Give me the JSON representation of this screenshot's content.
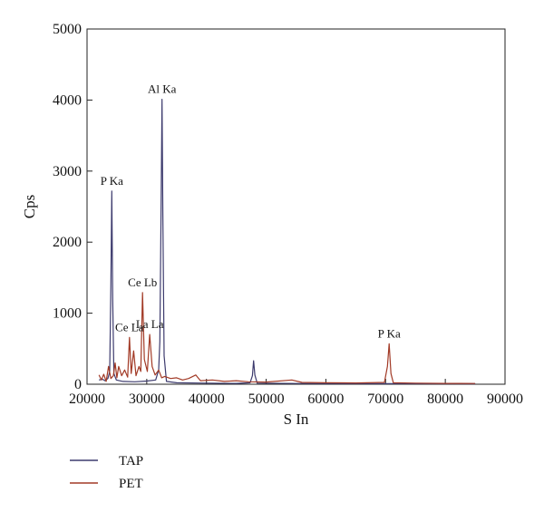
{
  "chart_data": {
    "type": "line",
    "title": "",
    "xlabel": "S In",
    "ylabel": "Cps",
    "xlim": [
      20000,
      90000
    ],
    "ylim": [
      0,
      5000
    ],
    "x_ticks": [
      20000,
      30000,
      40000,
      50000,
      60000,
      70000,
      80000,
      90000
    ],
    "y_ticks": [
      0,
      1000,
      2000,
      3000,
      4000,
      5000
    ],
    "grid": false,
    "legend_position": "bottom-left",
    "series": [
      {
        "name": "TAP",
        "color": "#3d3b6e",
        "points": [
          [
            22000,
            60
          ],
          [
            22600,
            70
          ],
          [
            23000,
            50
          ],
          [
            23500,
            80
          ],
          [
            23800,
            180
          ],
          [
            24000,
            1400
          ],
          [
            24150,
            2720
          ],
          [
            24300,
            1200
          ],
          [
            24500,
            150
          ],
          [
            24900,
            60
          ],
          [
            26000,
            40
          ],
          [
            28000,
            35
          ],
          [
            30000,
            45
          ],
          [
            31500,
            60
          ],
          [
            32000,
            200
          ],
          [
            32200,
            600
          ],
          [
            32400,
            2500
          ],
          [
            32550,
            4010
          ],
          [
            32700,
            2400
          ],
          [
            32900,
            400
          ],
          [
            33300,
            40
          ],
          [
            35000,
            20
          ],
          [
            40000,
            15
          ],
          [
            45000,
            12
          ],
          [
            47300,
            20
          ],
          [
            47700,
            120
          ],
          [
            47900,
            330
          ],
          [
            48100,
            130
          ],
          [
            48500,
            15
          ],
          [
            55000,
            10
          ],
          [
            65000,
            8
          ],
          [
            75000,
            8
          ],
          [
            85000,
            6
          ]
        ]
      },
      {
        "name": "PET",
        "color": "#a23a26",
        "points": [
          [
            22000,
            130
          ],
          [
            22400,
            60
          ],
          [
            22800,
            140
          ],
          [
            23200,
            40
          ],
          [
            23600,
            250
          ],
          [
            24000,
            80
          ],
          [
            24400,
            120
          ],
          [
            24700,
            300
          ],
          [
            25000,
            90
          ],
          [
            25300,
            250
          ],
          [
            25800,
            120
          ],
          [
            26300,
            200
          ],
          [
            26800,
            100
          ],
          [
            27100,
            660
          ],
          [
            27400,
            150
          ],
          [
            27800,
            470
          ],
          [
            28200,
            120
          ],
          [
            28700,
            250
          ],
          [
            29000,
            180
          ],
          [
            29300,
            1290
          ],
          [
            29600,
            350
          ],
          [
            30100,
            180
          ],
          [
            30500,
            700
          ],
          [
            30900,
            250
          ],
          [
            31400,
            130
          ],
          [
            32000,
            200
          ],
          [
            32500,
            90
          ],
          [
            33000,
            110
          ],
          [
            34000,
            80
          ],
          [
            35000,
            90
          ],
          [
            36000,
            60
          ],
          [
            37000,
            80
          ],
          [
            38200,
            130
          ],
          [
            39000,
            50
          ],
          [
            41000,
            60
          ],
          [
            43000,
            40
          ],
          [
            45000,
            50
          ],
          [
            47000,
            35
          ],
          [
            50000,
            30
          ],
          [
            54300,
            60
          ],
          [
            56000,
            25
          ],
          [
            60000,
            20
          ],
          [
            65000,
            18
          ],
          [
            69800,
            25
          ],
          [
            70300,
            250
          ],
          [
            70600,
            570
          ],
          [
            70900,
            150
          ],
          [
            71300,
            20
          ],
          [
            75000,
            15
          ],
          [
            80000,
            12
          ],
          [
            85000,
            10
          ]
        ]
      }
    ],
    "annotations": [
      {
        "text": "P Ka",
        "x": 24150,
        "y": 2720
      },
      {
        "text": "Al Ka",
        "x": 32550,
        "y": 4010
      },
      {
        "text": "Ce Lb",
        "x": 29300,
        "y": 1290
      },
      {
        "text": "Ce La",
        "x": 27100,
        "y": 660
      },
      {
        "text": "La La",
        "x": 30500,
        "y": 700
      },
      {
        "text": "P Ka",
        "x": 70600,
        "y": 570
      }
    ]
  }
}
